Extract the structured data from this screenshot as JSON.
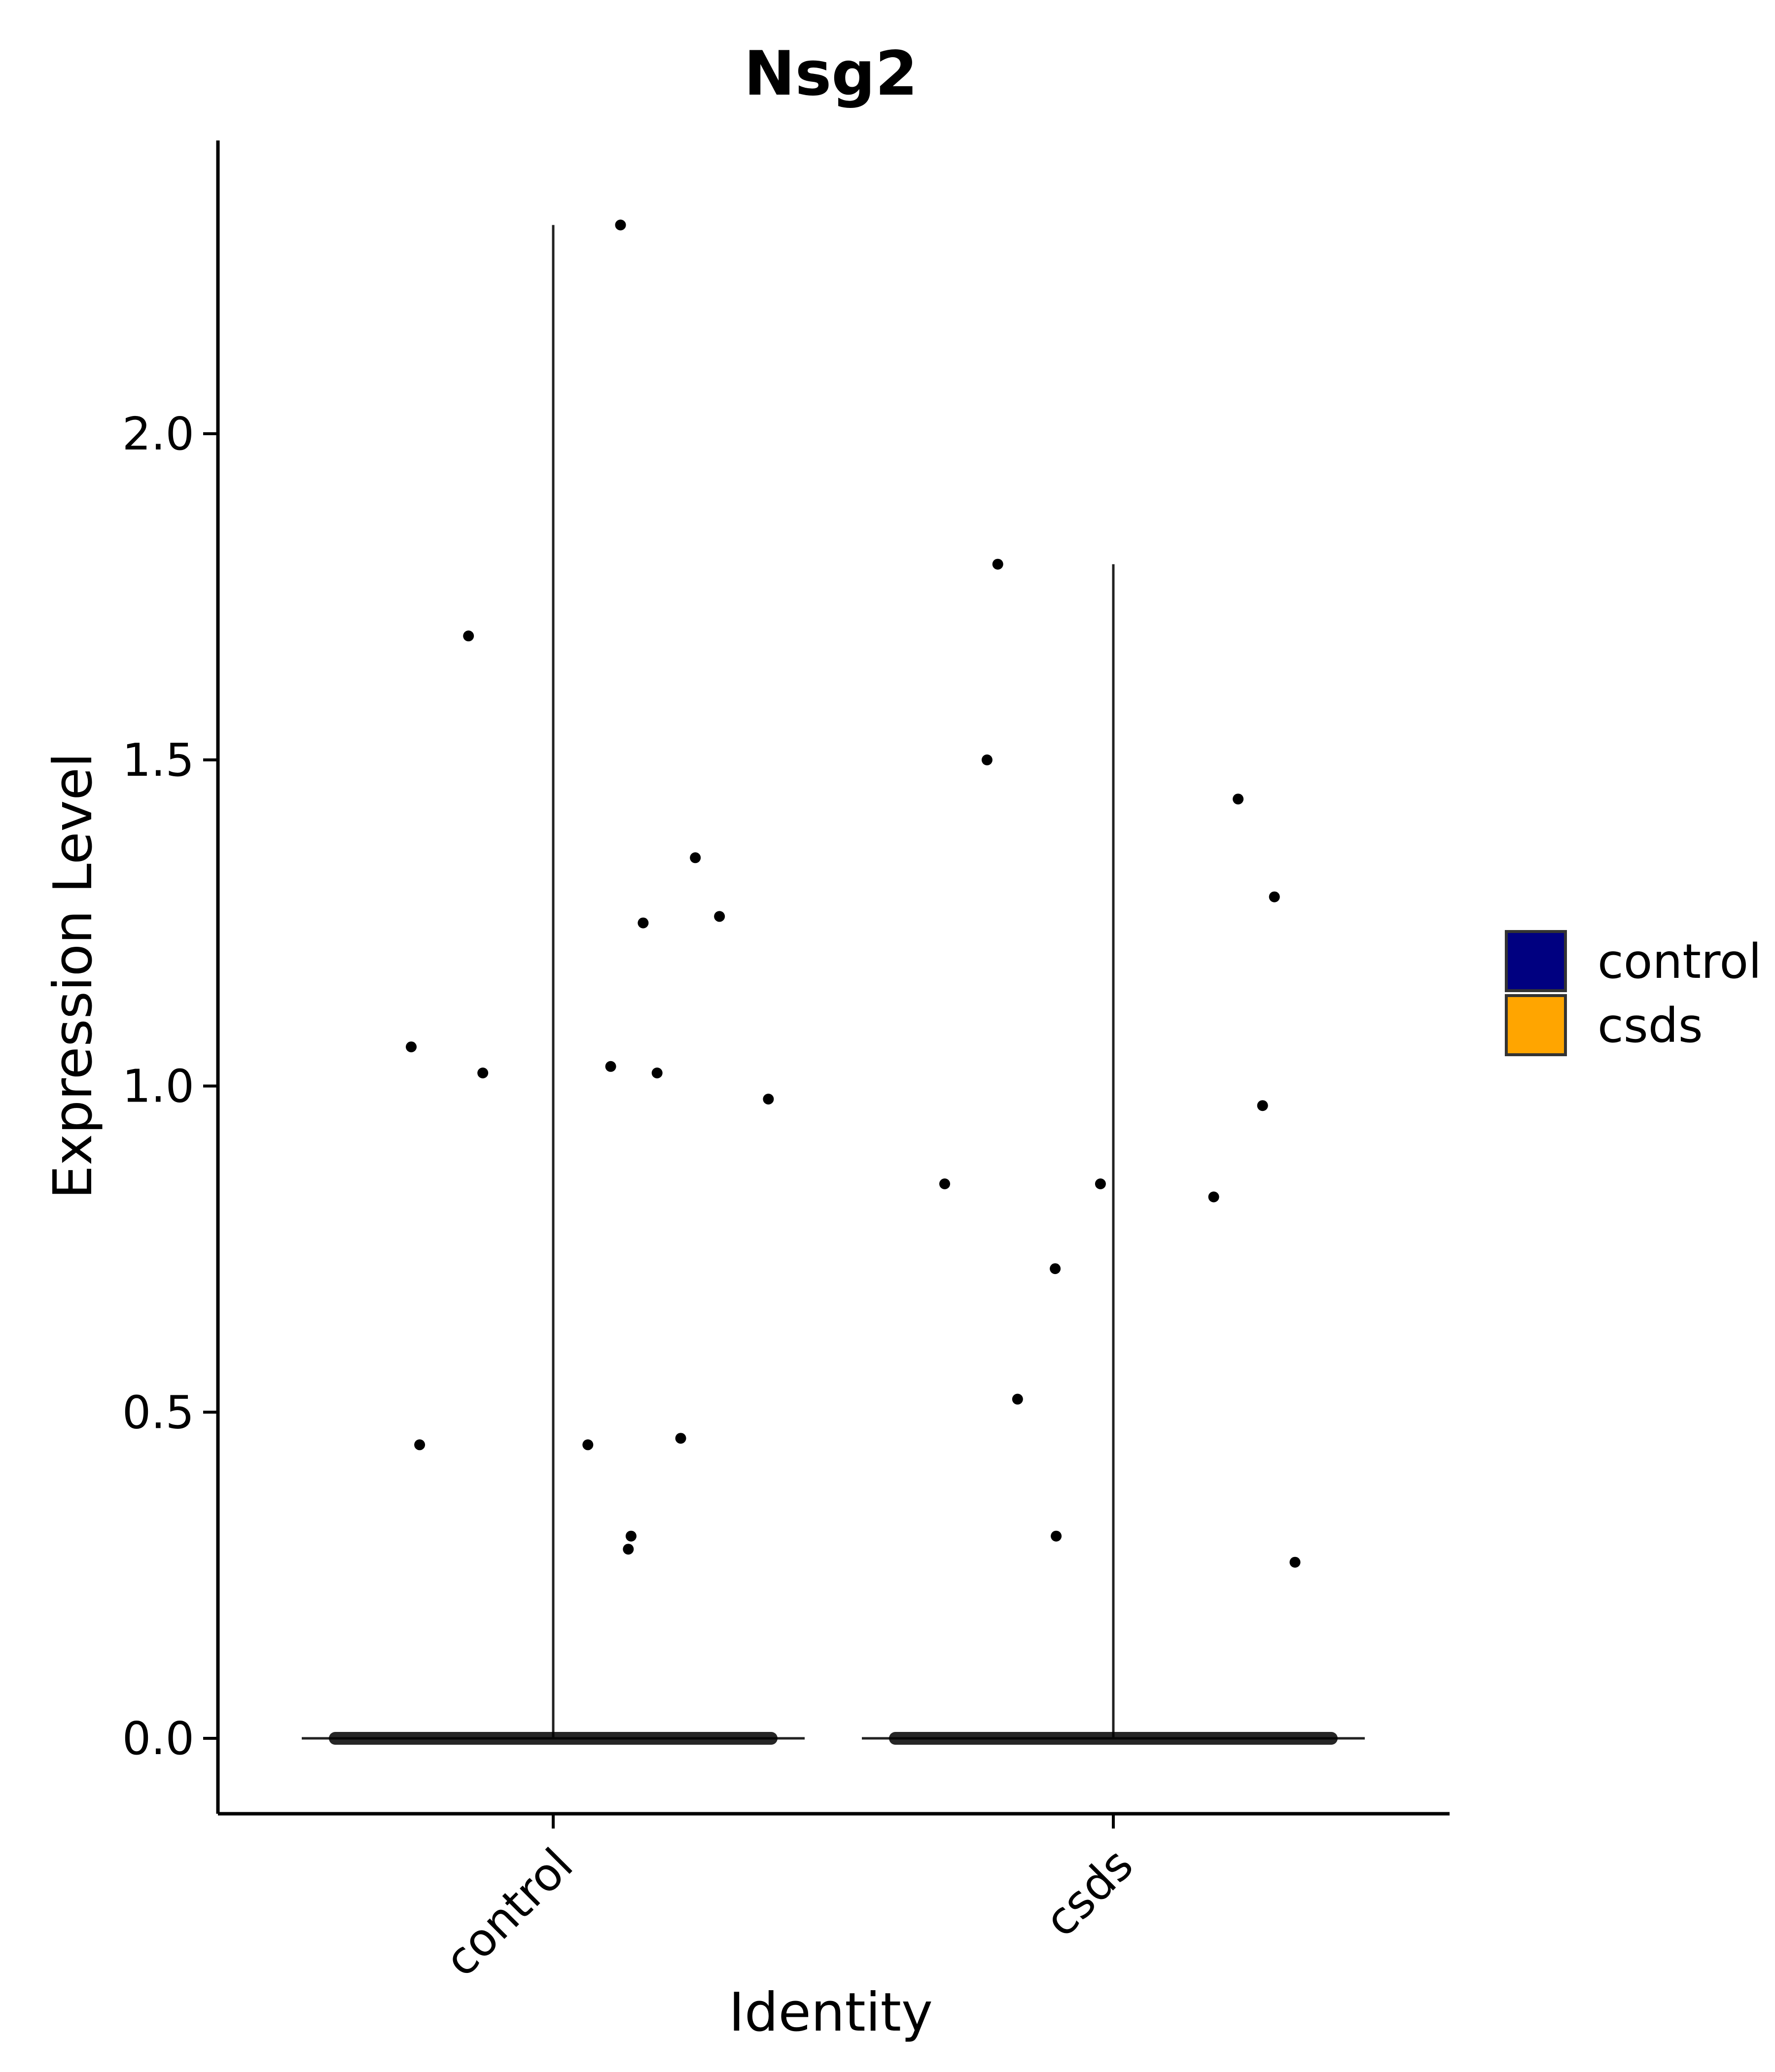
{
  "chart_data": {
    "type": "violin",
    "title": "Nsg2",
    "xlabel": "Identity",
    "ylabel": "Expression Level",
    "categories": [
      "control",
      "csds"
    ],
    "ylim": [
      -0.115,
      2.46
    ],
    "yticks": [
      0.0,
      0.5,
      1.0,
      1.5,
      2.0
    ],
    "ytick_labels": [
      "0.0",
      "0.5",
      "1.0",
      "1.5",
      "2.0"
    ],
    "violins": [
      {
        "category": "control",
        "min": 0.0,
        "max": 2.32,
        "fill": "#000080"
      },
      {
        "category": "csds",
        "min": 0.0,
        "max": 1.8,
        "fill": "#FFA500"
      }
    ],
    "points": [
      {
        "category": "control",
        "values": [
          2.32,
          1.69,
          1.03,
          0.98,
          0.31,
          0.29,
          1.06,
          1.26,
          1.25,
          1.35,
          1.02,
          1.02,
          0.46,
          0.45,
          0.45
        ]
      },
      {
        "category": "csds",
        "values": [
          1.8,
          1.5,
          1.44,
          1.29,
          0.97,
          0.85,
          0.85,
          0.83,
          0.72,
          0.52,
          0.31,
          0.27
        ]
      }
    ],
    "legend": {
      "placement": "right",
      "entries": [
        {
          "label": "control",
          "color": "#000080"
        },
        {
          "label": "csds",
          "color": "#FFA500"
        }
      ]
    },
    "grid": false
  }
}
